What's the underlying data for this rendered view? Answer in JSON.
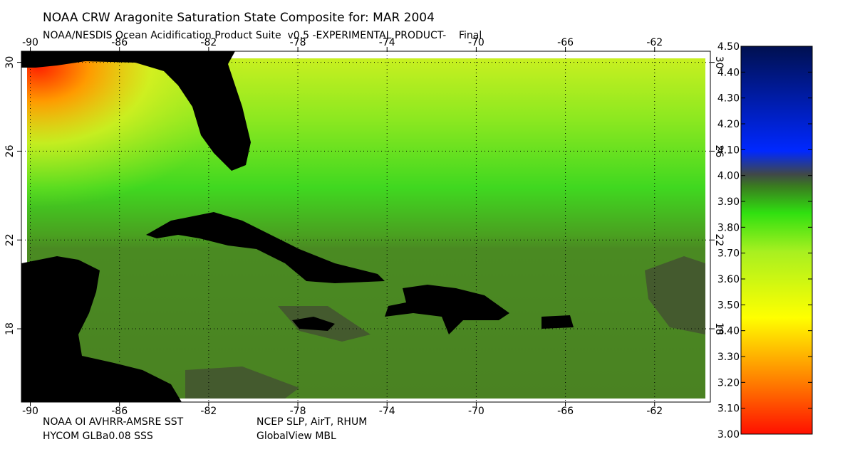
{
  "header": {
    "title": "NOAA CRW Aragonite Saturation State Composite for: MAR 2004",
    "subtitle": "NOAA/NESDIS Ocean Acidification Product Suite  v0.5 -EXPERIMENTAL PRODUCT-    Final"
  },
  "map": {
    "xlim": [
      -90.4,
      -59.5
    ],
    "ylim": [
      14.7,
      30.5
    ],
    "xticks": [
      -90,
      -86,
      -82,
      -78,
      -74,
      -70,
      -66,
      -62
    ],
    "yticks": [
      30,
      26,
      22,
      18
    ]
  },
  "footer": {
    "sst": "NOAA OI AVHRR-AMSRE SST",
    "met": "NCEP SLP, AirT, RHUM",
    "sss": "HYCOM GLBa0.08 SSS",
    "co2": "GlobalView MBL"
  },
  "colorbar": {
    "lim": [
      3.0,
      4.5
    ],
    "ticks": [
      {
        "value": 3.0,
        "label": "3.00"
      },
      {
        "value": 3.1,
        "label": "3.10"
      },
      {
        "value": 3.2,
        "label": "3.20"
      },
      {
        "value": 3.3,
        "label": "3.30"
      },
      {
        "value": 3.4,
        "label": "3.40"
      },
      {
        "value": 3.5,
        "label": "3.50"
      },
      {
        "value": 3.6,
        "label": "3.60"
      },
      {
        "value": 3.7,
        "label": "3.70"
      },
      {
        "value": 3.8,
        "label": "3.80"
      },
      {
        "value": 3.9,
        "label": "3.90"
      },
      {
        "value": 4.0,
        "label": "4.00"
      },
      {
        "value": 4.1,
        "label": "4.10"
      },
      {
        "value": 4.2,
        "label": "4.20"
      },
      {
        "value": 4.3,
        "label": "4.30"
      },
      {
        "value": 4.4,
        "label": "4.40"
      },
      {
        "value": 4.5,
        "label": "4.50"
      }
    ]
  }
}
